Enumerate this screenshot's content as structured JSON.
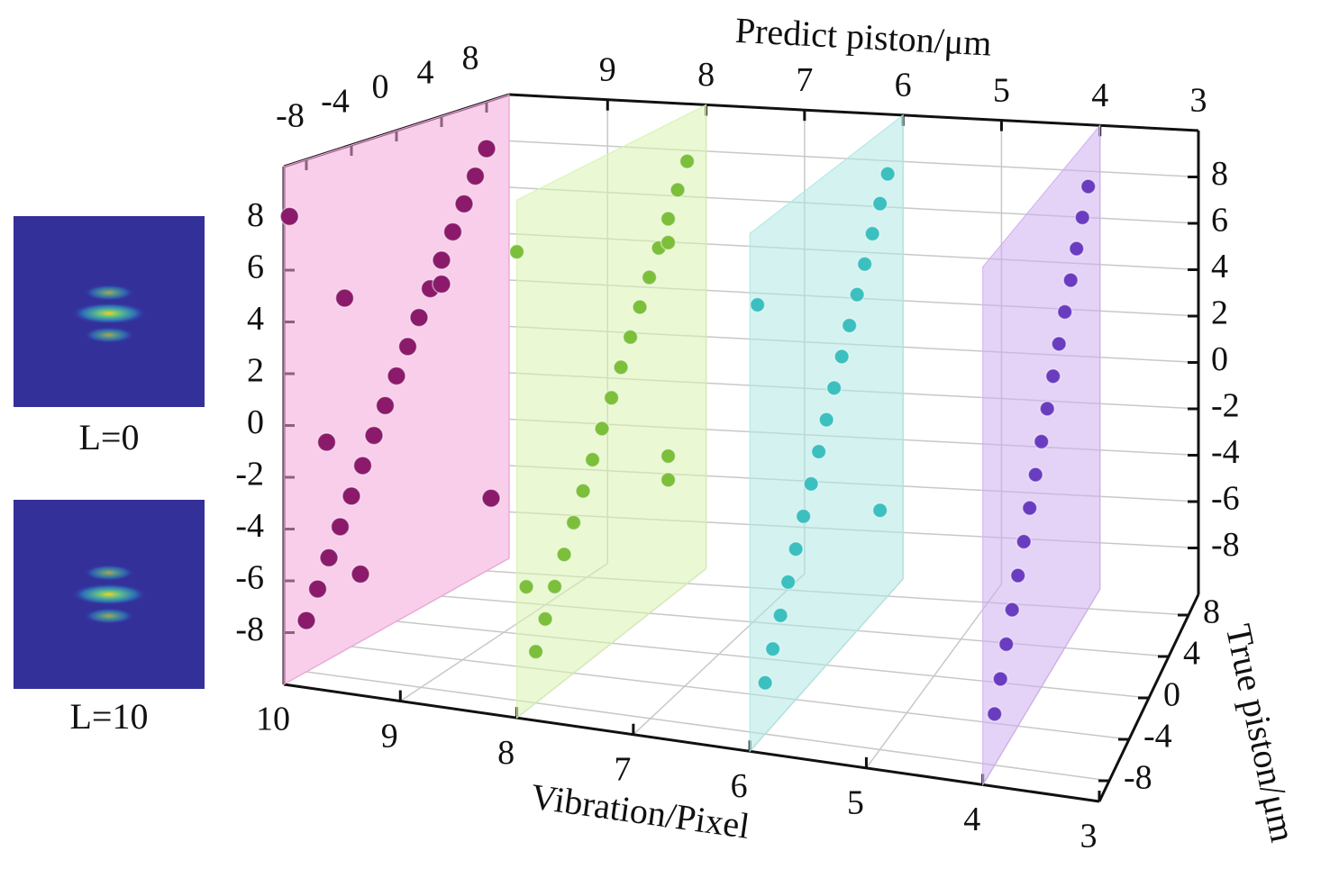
{
  "chart_data": {
    "type": "scatter3d",
    "xlabel": "Vibration/Pixel",
    "ylabel": "True piston/μm",
    "zlabel": "Predict piston/μm",
    "xlim": [
      3,
      10
    ],
    "xticks": [
      10,
      9,
      8,
      7,
      6,
      5,
      4,
      3
    ],
    "ylim": [
      -10,
      10
    ],
    "yticks": [
      -8,
      -4,
      0,
      4,
      8
    ],
    "zlim": [
      -10,
      10
    ],
    "zticks": [
      -8,
      -6,
      -4,
      -2,
      0,
      2,
      4,
      6,
      8
    ],
    "grid": true,
    "insets": [
      {
        "label": "L=0"
      },
      {
        "label": "L=10"
      }
    ],
    "series": [
      {
        "vibration": 10,
        "color": "#8b1a6b",
        "plane_color": "#f2a6da",
        "true": [
          -8,
          -7,
          -6,
          -5,
          -4,
          -3,
          -2,
          -1,
          0,
          1,
          2,
          3,
          4,
          5,
          6,
          7,
          8,
          -9.5,
          -4.6,
          -6.2,
          8.4,
          -3.2,
          4
        ],
        "predicted": [
          -8,
          -7,
          -6,
          -5,
          -4,
          -3,
          -2,
          -1,
          0,
          1,
          2,
          3,
          4,
          5,
          6,
          7,
          8,
          8,
          4,
          -1.4,
          -7,
          -7.3,
          3
        ]
      },
      {
        "vibration": 8,
        "color": "#7cbf3a",
        "plane_color": "#d8f2b0",
        "true": [
          -8,
          -7,
          -6,
          -5,
          -4,
          -3,
          -2,
          -1,
          0,
          1,
          2,
          3,
          4,
          5,
          6,
          7,
          8,
          -10,
          6,
          6,
          6,
          -9
        ],
        "predicted": [
          -8,
          -7,
          -6,
          -5,
          -4,
          -3,
          -2,
          -1,
          0,
          1,
          2,
          3,
          4,
          5,
          6,
          7,
          8,
          8,
          5,
          -4,
          -5,
          -5.2
        ]
      },
      {
        "vibration": 6,
        "color": "#3bbfbf",
        "plane_color": "#aee8e4",
        "true": [
          -8,
          -7,
          -6,
          -5,
          -4,
          -3,
          -2,
          -1,
          0,
          1,
          2,
          3,
          4,
          5,
          6,
          7,
          8,
          -9,
          7
        ],
        "predicted": [
          -8,
          -7,
          -6,
          -5,
          -4,
          -3,
          -2,
          -1,
          0,
          1,
          2,
          3,
          4,
          5,
          6,
          7,
          8,
          7,
          -6
        ]
      },
      {
        "vibration": 4,
        "color": "#6a3cc0",
        "plane_color": "#cfaef0",
        "true": [
          -8,
          -7,
          -6,
          -5,
          -4,
          -3,
          -2,
          -1,
          0,
          1,
          2,
          3,
          4,
          5,
          6,
          7,
          8
        ],
        "predicted": [
          -8,
          -7,
          -6,
          -5,
          -4,
          -3,
          -2,
          -1,
          0,
          1,
          2,
          3,
          4,
          5,
          6,
          7,
          8
        ]
      }
    ]
  }
}
